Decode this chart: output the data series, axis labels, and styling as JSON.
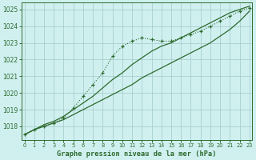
{
  "x": [
    0,
    1,
    2,
    3,
    4,
    5,
    6,
    7,
    8,
    9,
    10,
    11,
    12,
    13,
    14,
    15,
    16,
    17,
    18,
    19,
    20,
    21,
    22,
    23
  ],
  "line_actual": [
    1017.5,
    1017.8,
    1018.0,
    1018.2,
    1018.5,
    1019.1,
    1019.8,
    1020.5,
    1021.2,
    1022.2,
    1022.8,
    1023.1,
    1023.3,
    1023.2,
    1023.1,
    1023.1,
    1023.3,
    1023.5,
    1023.7,
    1024.0,
    1024.3,
    1024.6,
    1024.9,
    1025.1
  ],
  "line_lower": [
    1017.5,
    1017.8,
    1018.0,
    1018.2,
    1018.4,
    1018.7,
    1019.0,
    1019.3,
    1019.6,
    1019.9,
    1020.2,
    1020.5,
    1020.9,
    1021.2,
    1021.5,
    1021.8,
    1022.1,
    1022.4,
    1022.7,
    1023.0,
    1023.4,
    1023.8,
    1024.3,
    1024.9
  ],
  "line_upper": [
    1017.5,
    1017.8,
    1018.1,
    1018.3,
    1018.6,
    1019.0,
    1019.4,
    1019.8,
    1020.3,
    1020.8,
    1021.2,
    1021.7,
    1022.1,
    1022.5,
    1022.8,
    1023.0,
    1023.3,
    1023.6,
    1023.9,
    1024.2,
    1024.5,
    1024.8,
    1025.0,
    1025.2
  ],
  "color_lines": "#2d6a2d",
  "bg_color": "#d0f0f0",
  "grid_color": "#a0c8c8",
  "title": "Graphe pression niveau de la mer (hPa)",
  "ylim": [
    1017.2,
    1025.4
  ],
  "yticks": [
    1018,
    1019,
    1020,
    1021,
    1022,
    1023,
    1024,
    1025
  ],
  "xticks": [
    0,
    1,
    2,
    3,
    4,
    5,
    6,
    7,
    8,
    9,
    10,
    11,
    12,
    13,
    14,
    15,
    16,
    17,
    18,
    19,
    20,
    21,
    22,
    23
  ]
}
